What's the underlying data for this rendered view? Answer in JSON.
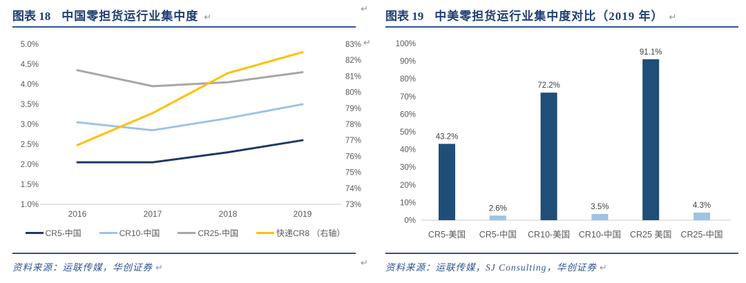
{
  "figure_marks": {
    "return": "↵"
  },
  "panels": {
    "left": {
      "figure_label": "图表 18",
      "title": "中国零担货运行业集中度",
      "source": "资料来源：运联传媒，华创证券"
    },
    "right": {
      "figure_label": "图表 19",
      "title": "中美零担货运行业集中度对比（2019 年）",
      "source": "资料来源：运联传媒，SJ Consulting，华创证券"
    }
  },
  "chart_data": [
    {
      "type": "line",
      "title": "中国零担货运行业集中度",
      "categories": [
        "2016",
        "2017",
        "2018",
        "2019"
      ],
      "series": [
        {
          "name": "CR5-中国",
          "axis": "left",
          "color": "#1F3864",
          "values": [
            2.05,
            2.05,
            2.3,
            2.6
          ]
        },
        {
          "name": "CR10-中国",
          "axis": "left",
          "color": "#9DC3E6",
          "values": [
            3.05,
            2.85,
            3.15,
            3.5
          ]
        },
        {
          "name": "CR25-中国",
          "axis": "left",
          "color": "#A6A6A6",
          "values": [
            4.35,
            3.95,
            4.05,
            4.3
          ]
        },
        {
          "name": "快递CR8 （右轴）",
          "axis": "right",
          "color": "#FFC000",
          "values": [
            76.7,
            78.7,
            81.2,
            82.5
          ]
        }
      ],
      "left_axis": {
        "min": 1.0,
        "max": 5.0,
        "step": 0.5,
        "tick_labels": [
          "5.0%",
          "4.5%",
          "4.0%",
          "3.5%",
          "3.0%",
          "2.5%",
          "2.0%",
          "1.5%",
          "1.0%"
        ]
      },
      "right_axis": {
        "min": 73,
        "max": 83,
        "step": 1,
        "tick_labels": [
          "83%",
          "82%",
          "81%",
          "80%",
          "79%",
          "78%",
          "77%",
          "76%",
          "75%",
          "74%",
          "73%"
        ]
      },
      "grid": false,
      "legend_position": "bottom"
    },
    {
      "type": "bar",
      "title": "中美零担货运行业集中度对比（2019 年）",
      "categories": [
        "CR5-美国",
        "CR5-中国",
        "CR10-美国",
        "CR10-中国",
        "CR25 美国",
        "CR25-中国"
      ],
      "values": [
        43.2,
        2.6,
        72.2,
        3.5,
        91.1,
        4.3
      ],
      "value_labels": [
        "43.2%",
        "2.6%",
        "72.2%",
        "3.5%",
        "91.1%",
        "4.3%"
      ],
      "bar_colors": [
        "#1F4E79",
        "#9DC3E6",
        "#1F4E79",
        "#9DC3E6",
        "#1F4E79",
        "#9DC3E6"
      ],
      "y_axis": {
        "min": 0,
        "max": 100,
        "step": 10,
        "tick_labels": [
          "100%",
          "90%",
          "80%",
          "70%",
          "60%",
          "50%",
          "40%",
          "30%",
          "20%",
          "10%",
          "0%"
        ]
      },
      "grid": false,
      "legend_position": "none"
    }
  ],
  "colors": {
    "title": "#1F3E75",
    "rule": "#2F5496",
    "source": "#2F5496",
    "tick": "#595959",
    "axis_line": "#C9C9C9",
    "value_label": "#404040",
    "return_mark": "#8A94A6",
    "bar_us": "#1F4E79",
    "bar_cn": "#9DC3E6",
    "background": "#FFFFFF"
  }
}
